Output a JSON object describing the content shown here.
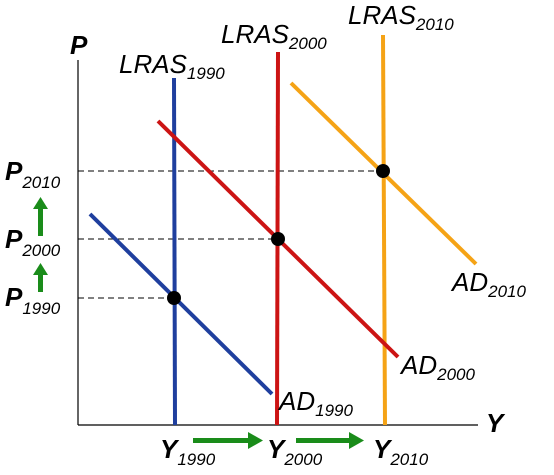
{
  "axes": {
    "y_label": "P",
    "x_label": "Y"
  },
  "lras": [
    {
      "name": "LRAS",
      "year": "1990",
      "color": "#1f3f9e"
    },
    {
      "name": "LRAS",
      "year": "2000",
      "color": "#cc1414"
    },
    {
      "name": "LRAS",
      "year": "2010",
      "color": "#f5a316"
    }
  ],
  "ad": [
    {
      "name": "AD",
      "year": "1990",
      "color": "#1f3f9e"
    },
    {
      "name": "AD",
      "year": "2000",
      "color": "#cc1414"
    },
    {
      "name": "AD",
      "year": "2010",
      "color": "#f5a316"
    }
  ],
  "price_levels": [
    {
      "name": "P",
      "year": "1990"
    },
    {
      "name": "P",
      "year": "2000"
    },
    {
      "name": "P",
      "year": "2010"
    }
  ],
  "output_levels": [
    {
      "name": "Y",
      "year": "1990"
    },
    {
      "name": "Y",
      "year": "2000"
    },
    {
      "name": "Y",
      "year": "2010"
    }
  ],
  "colors": {
    "arrow": "#1a8c1a",
    "equilibrium": "#000000",
    "axis": "#000000"
  }
}
